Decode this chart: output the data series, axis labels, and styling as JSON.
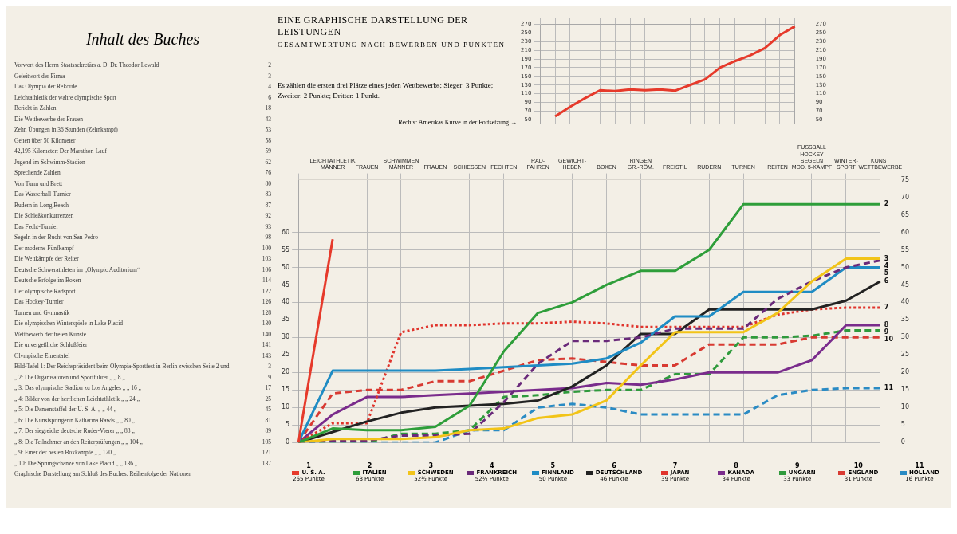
{
  "chart_data": [
    {
      "type": "other",
      "title": "Inhalt des Buches",
      "annotations": [
        "Vorwort des Herrn Staatssekretärs a. D. Dr. Theodor Lewald 2",
        "Geleitwort der Firma 3",
        "Das Olympia der Rekorde 4",
        "Leichtathletik der wahre olympische Sport 6",
        "Bericht in Zahlen 18",
        "Die Wettbewerbe der Frauen 43",
        "Zehn Übungen in 36 Stunden (Zehnkampf) 53",
        "Gehen über 50 Kilometer 58",
        "42,195 Kilometer: Der Marathon-Lauf 59",
        "Jugend im Schwimm-Stadion 62",
        "Sprechende Zahlen 76",
        "Von Turm und Brett 80",
        "Das Wasserball-Turnier 83",
        "Rudern in Long Beach 87",
        "Die Schießkonkurrenzen 92",
        "Das Fecht-Turnier 93",
        "Segeln in der Bucht von San Pedro 98",
        "Der moderne Fünfkampf 100",
        "Die Wettkämpfe der Reiter 103",
        "Deutsche Schwerathleten im „Olympic Auditorium“ 106",
        "Deutsche Erfolge im Boxen 114",
        "Der olympische Radsport 122",
        "Das Hockey-Turnier 126",
        "Turnen und Gymnastik 128",
        "Die olympischen Winterspiele in Lake Placid 130",
        "Wettbewerb der freien Künste 140",
        "Die unvergeßliche Schlußfeier 141",
        "Olympische Ehrentafel 143",
        "Bild-Tafel 1: Der Reichspräsident beim Olympia-Sportfest in Berlin zwischen Seite 2 und 3",
        "„ 2: Die Organisatoren und Sportführer „ „ 8 „ 9",
        "„ 3: Das olympische Stadion zu Los Angeles „ „ 16 „ 17",
        "„ 4: Bilder von der herrlichen Leichtathletik „ „ 24 „ 25",
        "„ 5: Die Damenstaffel der U. S. A. „ „ 44 „ 45",
        "„ 6: Die Kunstspringerin Katharina Rawls „ „ 80 „ 81",
        "„ 7: Der siegreiche deutsche Ruder-Vierer „ „ 88 „ 89",
        "„ 8: Die Teilnehmer an den Reiterprüfungen „ „ 104 „ 105",
        "„ 9: Einer der besten Boxkämpfe „ „ 120 „ 121",
        "„ 10: Die Sprungschanze von Lake Placid „ „ 136 „ 137",
        "Graphische Darstellung am Schluß des Buches: Reihenfolge der Nationen"
      ]
    },
    {
      "type": "line",
      "annotations": [
        "Rechts: Amerikas Kurve in der Fortsetzung →"
      ],
      "categories": [
        null,
        null,
        null,
        null,
        null,
        null,
        null,
        null,
        null,
        null,
        null,
        null,
        null,
        null,
        null,
        null,
        null,
        null
      ],
      "ylim": [
        40,
        270
      ],
      "yticks": [
        50,
        70,
        90,
        110,
        130,
        150,
        170,
        190,
        210,
        230,
        250,
        270
      ],
      "y2lim": [
        40,
        270
      ],
      "y2ticks": [
        50,
        70,
        90,
        110,
        130,
        150,
        170,
        190,
        210,
        230,
        250,
        270
      ],
      "grid": true,
      "series": [
        {
          "color": "#e63a2b",
          "values": [
            null,
            58,
            80,
            100,
            118,
            116,
            120,
            118,
            120,
            117,
            130,
            143,
            170,
            185,
            198,
            215,
            245,
            265
          ]
        }
      ]
    },
    {
      "type": "line",
      "title": "EINE GRAPHISCHE DARSTELLUNG DER LEISTUNGEN",
      "subtitle": "GESAMTWERTUNG NACH BEWERBEN UND PUNKTEN",
      "categories": [
        null,
        "LEICHTATHLETIK\nMÄNNER",
        "FRAUEN",
        "SCHWIMMEN\nMÄNNER",
        "FRAUEN",
        "SCHIESSEN",
        "FECHTEN",
        "RAD-\nFAHREN",
        "GEWICHT-\nHEBEN",
        "BOXEN",
        "RINGEN\nGR.-RÖM.",
        "FREISTIL",
        "RUDERN",
        "TURNEN",
        "REITEN",
        "FUSSBALL\nHOCKEY\nSEGELN\nMOD. 5-KAMPF",
        "WINTER-\nSPORT",
        "KUNST\nWETTBEWERBE"
      ],
      "ylim": [
        0,
        75
      ],
      "yticks": [
        0,
        5,
        10,
        15,
        20,
        25,
        30,
        35,
        40,
        45,
        50,
        55,
        60
      ],
      "y2lim": [
        0,
        75
      ],
      "y2ticks": [
        0,
        5,
        10,
        15,
        20,
        25,
        30,
        35,
        40,
        45,
        50,
        55,
        60,
        65,
        70,
        75
      ],
      "grid": true,
      "legend": "bottom",
      "annotations": [
        "Es zählen die ersten drei Plätze eines jeden Wettbewerbs; Sieger: 3 Punkte; Zweiter: 2 Punkte; Dritter: 1 Punkt.",
        "1",
        "265 Punkte",
        "2",
        "68 Punkte",
        "3",
        "52½ Punkte",
        "4",
        "52½ Punkte",
        "5",
        "50 Punkte",
        "6",
        "46 Punkte",
        "7",
        "39 Punkte",
        "8",
        "34 Punkte",
        "9",
        "33 Punkte",
        "10",
        "31 Punkte",
        "11",
        "16 Punkte",
        {
          "text": "2",
          "x": "KUNST\nWETTBEWERBE",
          "y": 68
        },
        {
          "text": "3",
          "x": "KUNST\nWETTBEWERBE",
          "y": 52.5
        },
        {
          "text": "4",
          "x": "KUNST\nWETTBEWERBE",
          "y": 52
        },
        {
          "text": "5",
          "x": "KUNST\nWETTBEWERBE",
          "y": 50
        },
        {
          "text": "6",
          "x": "KUNST\nWETTBEWERBE",
          "y": 46
        },
        {
          "text": "7",
          "x": "KUNST\nWETTBEWERBE",
          "y": 38.5
        },
        {
          "text": "8",
          "x": "KUNST\nWETTBEWERBE",
          "y": 33.5
        },
        {
          "text": "9",
          "x": "KUNST\nWETTBEWERBE",
          "y": 32
        },
        {
          "text": "10",
          "x": "KUNST\nWETTBEWERBE",
          "y": 30
        },
        {
          "text": "11",
          "x": "KUNST\nWETTBEWERBE",
          "y": 15.5
        }
      ],
      "series": [
        {
          "name": "U. S. A.",
          "color": "#e63a2b",
          "values": [
            0,
            58,
            null,
            null,
            null,
            null,
            null,
            null,
            null,
            null,
            null,
            null,
            null,
            null,
            null,
            null,
            null,
            null
          ]
        },
        {
          "name": "ITALIEN",
          "color": "#2e9e3a",
          "values": [
            0,
            4,
            3.5,
            3.5,
            4.5,
            10.5,
            26,
            37,
            40,
            45,
            49,
            49,
            55,
            68,
            68,
            68,
            68,
            68
          ]
        },
        {
          "name": "SCHWEDEN",
          "color": "#f2c418",
          "values": [
            0,
            1,
            1,
            1,
            1.5,
            3.5,
            4,
            7,
            8,
            12,
            22,
            31.5,
            31.5,
            31.5,
            37,
            46,
            52.5,
            52.5
          ]
        },
        {
          "name": "FRANKREICH",
          "color": "#6a2a7a",
          "line_style": "dashed",
          "values": [
            0,
            0.5,
            0.5,
            2,
            2,
            2.5,
            11.5,
            22.5,
            29,
            29,
            30,
            32.5,
            32.5,
            32.5,
            41,
            46,
            50,
            52
          ]
        },
        {
          "name": "FINNLAND",
          "color": "#1f8cc4",
          "values": [
            0,
            20.5,
            20.5,
            20.5,
            20.5,
            21,
            21.5,
            22,
            22.5,
            24,
            28.5,
            36,
            36,
            43,
            43,
            43,
            50,
            50
          ]
        },
        {
          "name": "DEUTSCHLAND",
          "color": "#222222",
          "values": [
            0,
            3,
            6,
            8.5,
            10,
            10.5,
            11,
            12,
            16,
            22,
            31,
            31,
            38,
            38,
            38,
            38,
            40.5,
            46
          ]
        },
        {
          "name": "JAPAN",
          "color": "#e0342c",
          "line_style": "dotted",
          "values": [
            0,
            5.5,
            5.5,
            31.5,
            33.5,
            33.5,
            34,
            34,
            34.5,
            34,
            33,
            33,
            33,
            33,
            36.5,
            38,
            38.5,
            38.5
          ]
        },
        {
          "name": "KANADA",
          "color": "#7a2c8c",
          "values": [
            0,
            8,
            13,
            13,
            13.5,
            14,
            14.5,
            15,
            15.5,
            17,
            16.5,
            18,
            20,
            20,
            20,
            23.5,
            33.5,
            33.5
          ]
        },
        {
          "name": "UNGARN",
          "color": "#2f9a3c",
          "line_style": "dashed",
          "values": [
            0,
            0,
            0,
            2.5,
            2.5,
            3.5,
            13,
            13.5,
            14.5,
            15,
            15,
            19.5,
            19.5,
            30,
            30,
            30.5,
            32,
            32
          ]
        },
        {
          "name": "ENGLAND",
          "color": "#d83a32",
          "line_style": "dashed",
          "values": [
            0,
            14,
            15,
            15,
            17.5,
            17.5,
            20.5,
            23.5,
            24,
            23,
            22,
            22,
            28,
            28,
            28,
            30,
            30,
            30
          ]
        },
        {
          "name": "HOLLAND",
          "color": "#2a8bc4",
          "line_style": "dashed",
          "values": [
            0,
            0,
            0,
            0,
            0,
            3.5,
            3.5,
            10,
            11,
            10,
            8,
            8,
            8,
            8,
            13.5,
            15,
            15.5,
            15.5
          ]
        }
      ]
    }
  ]
}
